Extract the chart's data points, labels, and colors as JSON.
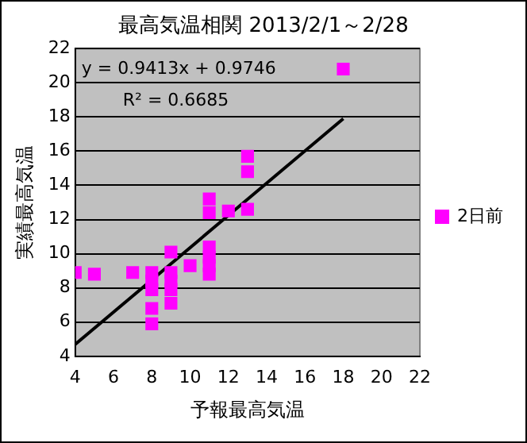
{
  "chart_data": {
    "type": "scatter",
    "title": "最高気温相関 2013/2/1～2/28",
    "xlabel": "予報最高気温",
    "ylabel": "実績最高気温",
    "annotations": [
      "y = 0.9413x + 0.9746",
      "R² = 0.6685"
    ],
    "series": [
      {
        "name": "2日前",
        "marker": "square",
        "color": "#ff00ff",
        "x": [
          4,
          5,
          7,
          8,
          8,
          8,
          8,
          8,
          9,
          9,
          9,
          9,
          9,
          10,
          11,
          11,
          11,
          11,
          11,
          11,
          12,
          13,
          13,
          13,
          18
        ],
        "values": [
          8.9,
          8.8,
          8.9,
          8.9,
          8.4,
          7.9,
          6.8,
          5.9,
          10.1,
          8.9,
          8.4,
          7.9,
          7.1,
          9.3,
          10.4,
          9.8,
          9.3,
          8.8,
          13.2,
          12.4,
          12.5,
          12.6,
          14.8,
          15.7,
          20.8
        ]
      },
      {
        "type": "line",
        "color": "#000000",
        "x": [
          4,
          18
        ],
        "values": [
          4.7,
          17.9
        ],
        "marker": "none"
      }
    ],
    "xlim": [
      4,
      22
    ],
    "xticks": [
      4,
      6,
      8,
      10,
      12,
      14,
      16,
      18,
      20,
      22
    ],
    "ylim": [
      4,
      22
    ],
    "yticks": [
      4,
      6,
      8,
      10,
      12,
      14,
      16,
      18,
      20,
      22
    ],
    "grid": "y",
    "legend": "right"
  }
}
